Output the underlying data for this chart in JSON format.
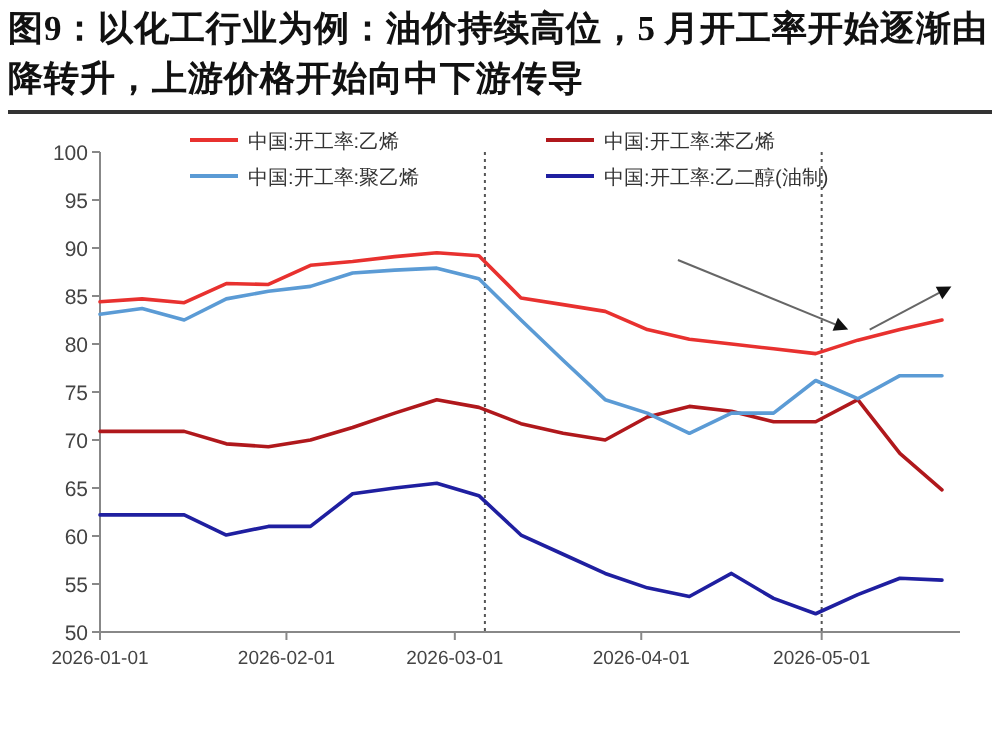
{
  "chart_data": {
    "type": "line",
    "title": "图9：以化工行业为例：油价持续高位，5 月开工率开始逐渐由降转升，上游价格开始向中下游传导",
    "x": [
      "2026-01-01",
      "2026-01-08",
      "2026-01-15",
      "2026-01-22",
      "2026-01-29",
      "2026-02-05",
      "2026-02-12",
      "2026-02-19",
      "2026-02-26",
      "2026-03-05",
      "2026-03-12",
      "2026-03-19",
      "2026-03-26",
      "2026-04-02",
      "2026-04-09",
      "2026-04-16",
      "2026-04-23",
      "2026-04-30",
      "2026-05-07",
      "2026-05-14",
      "2026-05-21"
    ],
    "series": [
      {
        "name": "中国:开工率:乙烯",
        "color": "#e8312f",
        "values": [
          84.4,
          84.7,
          84.3,
          86.3,
          86.2,
          88.2,
          88.6,
          89.1,
          89.5,
          89.2,
          84.8,
          84.1,
          83.4,
          81.5,
          80.5,
          80,
          79.5,
          79,
          80.4,
          81.5,
          82.5
        ]
      },
      {
        "name": "中国:开工率:苯乙烯",
        "color": "#b0181c",
        "values": [
          70.9,
          70.9,
          70.9,
          69.6,
          69.3,
          70,
          71.3,
          72.8,
          74.2,
          73.4,
          71.7,
          70.7,
          70,
          72.4,
          73.5,
          73,
          71.9,
          71.9,
          74.2,
          68.6,
          64.8
        ]
      },
      {
        "name": "中国:开工率:聚乙烯",
        "color": "#5b9bd5",
        "values": [
          83.1,
          83.7,
          82.5,
          84.7,
          85.5,
          86,
          87.4,
          87.7,
          87.9,
          86.8,
          82.5,
          78.3,
          74.2,
          72.8,
          70.7,
          72.8,
          72.8,
          76.2,
          74.3,
          76.7,
          76.7
        ]
      },
      {
        "name": "中国:开工率:乙二醇(油制)",
        "color": "#1f1fa0",
        "values": [
          62.2,
          62.2,
          62.2,
          60.1,
          61,
          61,
          64.4,
          65,
          65.5,
          64.2,
          60.1,
          58.1,
          56.1,
          54.6,
          53.7,
          56.1,
          53.5,
          51.9,
          53.9,
          55.6,
          55.4
        ]
      }
    ],
    "xlim": [
      "2026-01-01",
      "2026-05-24"
    ],
    "xticks": [
      "2026-01-01",
      "2026-02-01",
      "2026-03-01",
      "2026-04-01",
      "2026-05-01"
    ],
    "ylim": [
      50,
      100
    ],
    "yticks": [
      50,
      55,
      60,
      65,
      70,
      75,
      80,
      85,
      90,
      95,
      100
    ],
    "ref_lines": [
      {
        "axis": "x",
        "value": "2026-03-06",
        "color": "#555555",
        "line_style": "dotted"
      },
      {
        "axis": "x",
        "value": "2026-05-01",
        "color": "#555555",
        "line_style": "dotted"
      }
    ],
    "legend": "top"
  }
}
